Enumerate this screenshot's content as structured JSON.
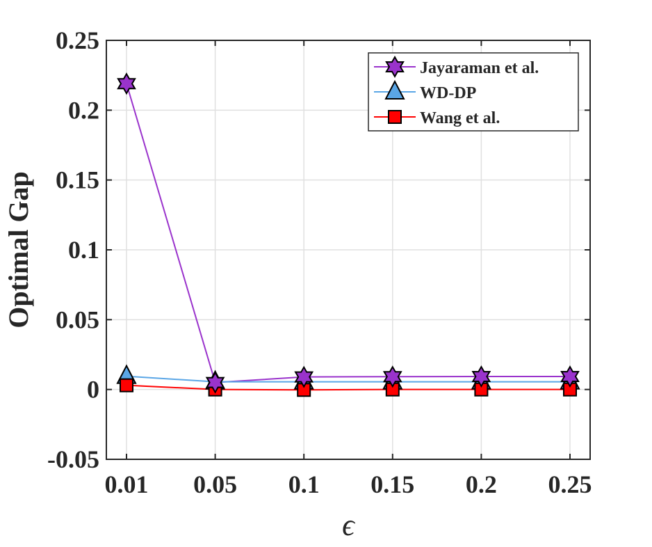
{
  "colors": {
    "jayaraman": "#9a33cc",
    "wddp": "#5aa6e6",
    "wang": "#ff0000",
    "grid": "#e0e0e0",
    "axis": "#262626"
  },
  "chart_data": {
    "type": "line",
    "title": "",
    "xlabel": "ϵ",
    "ylabel": "Optimal Gap",
    "x": [
      0.01,
      0.05,
      0.1,
      0.15,
      0.2,
      0.25
    ],
    "x_tick_labels": [
      "0.01",
      "0.05",
      "0.1",
      "0.15",
      "0.2",
      "0.25"
    ],
    "y_ticks": [
      -0.05,
      0,
      0.05,
      0.1,
      0.15,
      0.2,
      0.25
    ],
    "y_tick_labels": [
      "-0.05",
      "0",
      "0.05",
      "0.1",
      "0.15",
      "0.2",
      "0.25"
    ],
    "ylim": [
      -0.05,
      0.25
    ],
    "grid": true,
    "legend_position": "top-right",
    "series": [
      {
        "name": "Jayaraman et al.",
        "marker": "hexagram",
        "color": "#9a33cc",
        "marker_fill": "#9a33cc",
        "values": [
          0.219,
          0.005,
          0.009,
          0.0092,
          0.0093,
          0.0093
        ]
      },
      {
        "name": "WD-DP",
        "marker": "triangle",
        "color": "#5aa6e6",
        "marker_fill": "#5aa6e6",
        "values": [
          0.0095,
          0.0055,
          0.0055,
          0.0055,
          0.0055,
          0.0055
        ]
      },
      {
        "name": "Wang et al.",
        "marker": "square",
        "color": "#ff0000",
        "marker_fill": "#ff0000",
        "values": [
          0.003,
          0.0,
          -0.0003,
          0.0,
          0.0,
          0.0
        ]
      }
    ]
  }
}
